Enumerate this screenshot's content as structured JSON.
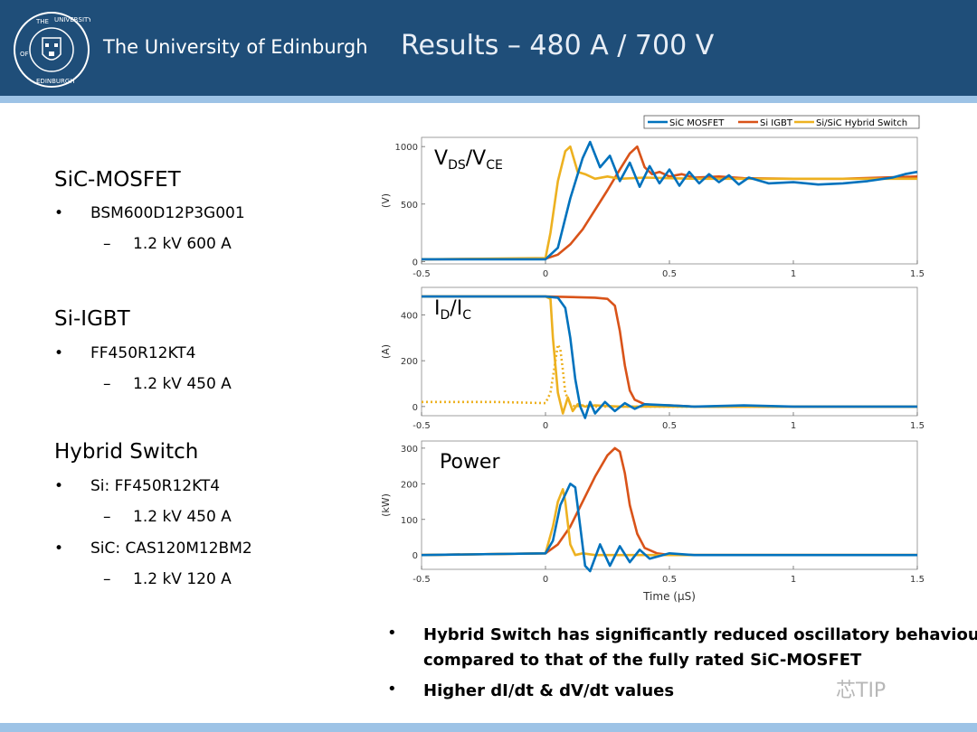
{
  "header": {
    "university": "The University of Edinburgh",
    "title": "Results – 480 A / 700 V",
    "crest_text": "THE UNIVERSITY OF EDINBURGH"
  },
  "left": {
    "sections": [
      {
        "title": "SiC-MOSFET",
        "bullets": [
          {
            "text": "BSM600D12P3G001",
            "sub": [
              "1.2 kV 600 A"
            ]
          }
        ]
      },
      {
        "title": "Si-IGBT",
        "bullets": [
          {
            "text": "FF450R12KT4",
            "sub": [
              "1.2 kV 450 A"
            ]
          }
        ]
      },
      {
        "title": "Hybrid Switch",
        "bullets": [
          {
            "text": "Si: FF450R12KT4",
            "sub": [
              "1.2 kV 450 A"
            ]
          },
          {
            "text": "SiC: CAS120M12BM2",
            "sub": [
              "1.2 kV 120 A"
            ]
          }
        ]
      }
    ],
    "bullet_char": "•",
    "dash_char": "–"
  },
  "bottom": {
    "bullets": [
      "Hybrid Switch has significantly reduced oscillatory behaviour compared to that of the fully rated SiC-MOSFET",
      "Higher dI/dt & dV/dt values"
    ],
    "line1": "Hybrid Switch has significantly reduced oscillatory behaviour",
    "line2": "compared to that of the fully rated SiC-MOSFET",
    "line3": "Higher dI/dt & dV/dt values"
  },
  "watermark": "芯TIP",
  "colors": {
    "header": "#1f4e79",
    "stripe": "#9dc3e6",
    "sic": "#0072bd",
    "igbt": "#d95319",
    "hybrid": "#edb120"
  },
  "chart_data": {
    "type": "line",
    "legend": [
      "SiC MOSFET",
      "Si IGBT",
      "Si/SiC Hybrid Switch"
    ],
    "legend_position": "top-right",
    "xlabel": "Time (μS)",
    "xlim": [
      -0.5,
      1.5
    ],
    "xticks": [
      "-0.5",
      "0",
      "0.5",
      "1",
      "1.5"
    ],
    "panels": [
      {
        "label_main": "V",
        "label_sub1": "DS",
        "label_mid": "/V",
        "label_sub2": "CE",
        "ylabel": "(V)",
        "ylim": [
          -20,
          1080
        ],
        "yticks": [
          0,
          500,
          1000
        ],
        "series": [
          {
            "name": "SiC MOSFET",
            "x": [
              -0.5,
              0.0,
              0.05,
              0.1,
              0.15,
              0.18,
              0.22,
              0.26,
              0.3,
              0.34,
              0.38,
              0.42,
              0.46,
              0.5,
              0.54,
              0.58,
              0.62,
              0.66,
              0.7,
              0.74,
              0.78,
              0.82,
              0.9,
              1.0,
              1.1,
              1.2,
              1.3,
              1.4,
              1.45,
              1.5
            ],
            "y": [
              20,
              20,
              120,
              550,
              900,
              1040,
              820,
              920,
              700,
              860,
              650,
              830,
              680,
              800,
              660,
              780,
              680,
              760,
              690,
              750,
              670,
              730,
              680,
              690,
              670,
              680,
              700,
              730,
              760,
              780
            ]
          },
          {
            "name": "Si IGBT",
            "x": [
              -0.5,
              0.0,
              0.05,
              0.1,
              0.15,
              0.2,
              0.25,
              0.3,
              0.34,
              0.37,
              0.4,
              0.43,
              0.46,
              0.5,
              0.55,
              0.6,
              0.7,
              0.8,
              1.0,
              1.2,
              1.5
            ],
            "y": [
              20,
              25,
              60,
              150,
              280,
              450,
              620,
              800,
              940,
              1000,
              820,
              760,
              780,
              740,
              760,
              730,
              740,
              725,
              720,
              720,
              740
            ]
          },
          {
            "name": "Si/SiC Hybrid Switch",
            "x": [
              -0.5,
              0.0,
              0.02,
              0.05,
              0.08,
              0.1,
              0.13,
              0.16,
              0.2,
              0.25,
              0.3,
              0.4,
              0.5,
              0.6,
              0.8,
              1.0,
              1.5
            ],
            "y": [
              20,
              30,
              250,
              700,
              960,
              1000,
              780,
              760,
              720,
              740,
              720,
              730,
              725,
              720,
              720,
              720,
              720
            ]
          }
        ]
      },
      {
        "label_main": "I",
        "label_sub1": "D",
        "label_mid": "/I",
        "label_sub2": "C",
        "ylabel": "(A)",
        "ylim": [
          -40,
          520
        ],
        "yticks": [
          0,
          200,
          400
        ],
        "series": [
          {
            "name": "SiC MOSFET",
            "x": [
              -0.5,
              0.0,
              0.05,
              0.08,
              0.1,
              0.12,
              0.14,
              0.16,
              0.18,
              0.2,
              0.24,
              0.28,
              0.32,
              0.36,
              0.4,
              0.5,
              0.6,
              0.8,
              1.0,
              1.5
            ],
            "y": [
              480,
              480,
              475,
              430,
              300,
              120,
              0,
              -50,
              20,
              -30,
              20,
              -20,
              15,
              -10,
              10,
              5,
              0,
              5,
              0,
              0
            ]
          },
          {
            "name": "Si IGBT",
            "x": [
              -0.5,
              0.0,
              0.1,
              0.2,
              0.25,
              0.28,
              0.3,
              0.32,
              0.34,
              0.36,
              0.4,
              0.45,
              0.5,
              0.6,
              0.8,
              1.0,
              1.5
            ],
            "y": [
              480,
              480,
              478,
              475,
              470,
              440,
              330,
              180,
              70,
              30,
              10,
              5,
              5,
              0,
              0,
              0,
              0
            ]
          },
          {
            "name": "Si/SiC Hybrid Switch",
            "x": [
              -0.5,
              0.0,
              0.02,
              0.03,
              0.05,
              0.07,
              0.09,
              0.11,
              0.13,
              0.16,
              0.2,
              0.3,
              0.5,
              1.0,
              1.5
            ],
            "y": [
              480,
              480,
              470,
              300,
              60,
              -30,
              40,
              -20,
              10,
              0,
              5,
              0,
              0,
              0,
              0
            ]
          },
          {
            "name": "Si/SiC Hybrid Switch (dotted)",
            "x": [
              -0.5,
              -0.2,
              0.0,
              0.02,
              0.04,
              0.05,
              0.06,
              0.07,
              0.08,
              0.1,
              0.12,
              0.15,
              0.2,
              0.5,
              1.5
            ],
            "y": [
              20,
              20,
              15,
              60,
              200,
              270,
              250,
              160,
              60,
              10,
              0,
              5,
              0,
              0,
              0
            ]
          }
        ]
      },
      {
        "label_main": "Power",
        "ylabel": "(kW)",
        "ylim": [
          -40,
          320
        ],
        "yticks": [
          0,
          100,
          200,
          300
        ],
        "series": [
          {
            "name": "SiC MOSFET",
            "x": [
              -0.5,
              0.0,
              0.03,
              0.06,
              0.1,
              0.12,
              0.14,
              0.16,
              0.18,
              0.22,
              0.26,
              0.3,
              0.34,
              0.38,
              0.42,
              0.5,
              0.6,
              0.8,
              1.0,
              1.5
            ],
            "y": [
              0,
              5,
              40,
              140,
              200,
              190,
              80,
              -30,
              -45,
              30,
              -30,
              25,
              -20,
              15,
              -10,
              5,
              0,
              0,
              0,
              0
            ]
          },
          {
            "name": "Si IGBT",
            "x": [
              -0.5,
              0.0,
              0.05,
              0.1,
              0.15,
              0.2,
              0.25,
              0.28,
              0.3,
              0.32,
              0.34,
              0.37,
              0.4,
              0.45,
              0.5,
              0.6,
              1.0,
              1.5
            ],
            "y": [
              0,
              5,
              30,
              80,
              150,
              220,
              280,
              300,
              290,
              230,
              140,
              60,
              20,
              5,
              0,
              0,
              0,
              0
            ]
          },
          {
            "name": "Si/SiC Hybrid Switch",
            "x": [
              -0.5,
              0.0,
              0.03,
              0.05,
              0.07,
              0.08,
              0.1,
              0.12,
              0.15,
              0.2,
              0.3,
              0.5,
              1.5
            ],
            "y": [
              0,
              5,
              80,
              150,
              185,
              150,
              30,
              0,
              5,
              0,
              0,
              0,
              0
            ]
          }
        ]
      }
    ]
  }
}
